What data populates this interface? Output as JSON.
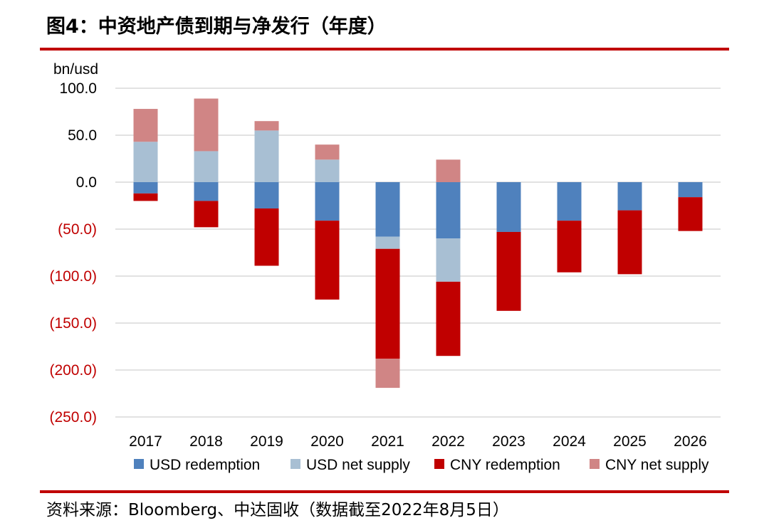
{
  "header": {
    "title": "图4：中资地产债到期与净发行（年度）"
  },
  "footer": {
    "source": "资料来源：Bloomberg、中达固收（数据截至2022年8月5日）"
  },
  "chart_data": {
    "type": "bar",
    "stacked": true,
    "unit_label": "bn/usd",
    "categories": [
      "2017",
      "2018",
      "2019",
      "2020",
      "2021",
      "2022",
      "2023",
      "2024",
      "2025",
      "2026"
    ],
    "ylim": [
      -250,
      100
    ],
    "yticks": [
      100,
      50,
      0,
      -50,
      -100,
      -150,
      -200,
      -250
    ],
    "ytick_labels": [
      "100.0",
      "50.0",
      "0.0",
      "(50.0)",
      "(100.0)",
      "(150.0)",
      "(200.0)",
      "(250.0)"
    ],
    "grid": true,
    "legend_position": "bottom",
    "series": [
      {
        "name": "USD redemption",
        "color": "#4f81bd",
        "values": [
          -12,
          -20,
          -28,
          -41,
          -58,
          -60,
          -53,
          -41,
          -30,
          -16
        ]
      },
      {
        "name": "USD net supply",
        "color": "#a8bfd3",
        "values": [
          43,
          33,
          55,
          24,
          -13,
          -46,
          0,
          0,
          0,
          0
        ]
      },
      {
        "name": "CNY redemption",
        "color": "#c00000",
        "values": [
          -8,
          -28,
          -61,
          -84,
          -117,
          -79,
          -84,
          -55,
          -68,
          -36
        ]
      },
      {
        "name": "CNY net supply",
        "color": "#d08585",
        "values": [
          35,
          56,
          10,
          16,
          -31,
          24,
          0,
          0,
          0,
          0
        ]
      }
    ],
    "negative_tick_color": "#c00000",
    "positive_tick_color": "#000000",
    "accent_color": "#c00000"
  }
}
